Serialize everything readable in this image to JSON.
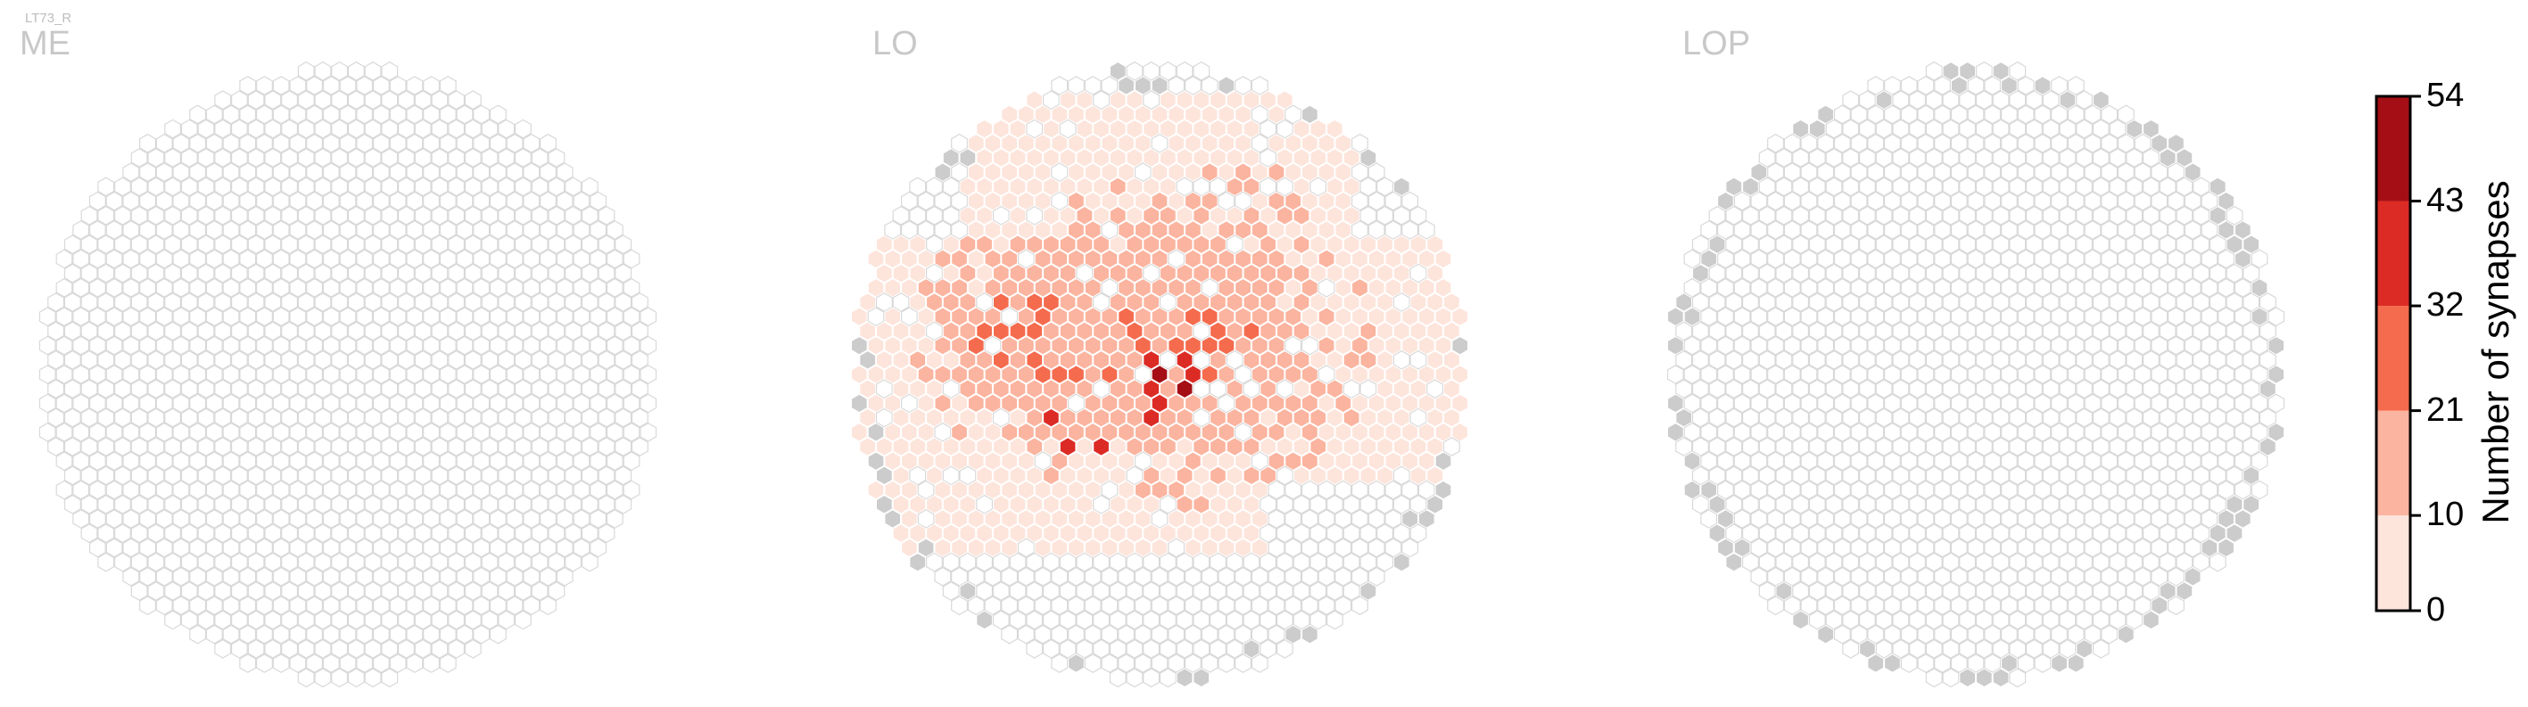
{
  "cell_type_label": "LT73_R",
  "chart_data": {
    "type": "heatmap",
    "subtype": "hexagonal-eye-map",
    "panels": [
      {
        "name": "ME",
        "title": "ME"
      },
      {
        "name": "LO",
        "title": "LO"
      },
      {
        "name": "LOP",
        "title": "LOP"
      }
    ],
    "colorbar": {
      "label": "Number of synapses",
      "ticks": [
        0,
        10,
        21,
        32,
        43,
        54
      ],
      "range": [
        0,
        54
      ],
      "colors": [
        "#fde5dc",
        "#fbb49f",
        "#f56b4e",
        "#dc2b25",
        "#a50e15"
      ]
    },
    "colors": {
      "empty_hex_stroke": "#d9d9d9",
      "no_data_hex_fill": "#cccccc",
      "filled_hex_stroke": "#ffffff"
    },
    "lo_synapse_bins": {
      "description_bins": "bin index 0-4 correspond to 0-10,10-21,21-32,32-43,43-54",
      "hotspots": [
        {
          "col": 0,
          "row": 0,
          "bin": 4
        },
        {
          "col": 1,
          "row": 1,
          "bin": 4
        },
        {
          "col": -1,
          "row": 1,
          "bin": 3
        },
        {
          "col": -1,
          "row": -1,
          "bin": 3
        },
        {
          "col": 1,
          "row": -1,
          "bin": 3
        },
        {
          "col": 2,
          "row": 0,
          "bin": 3
        },
        {
          "col": 0,
          "row": 2,
          "bin": 3
        },
        {
          "col": -1,
          "row": 3,
          "bin": 3
        },
        {
          "col": -7,
          "row": 3,
          "bin": 3
        },
        {
          "col": -4,
          "row": 5,
          "bin": 3
        },
        {
          "col": -6,
          "row": 5,
          "bin": 3
        }
      ]
    }
  }
}
